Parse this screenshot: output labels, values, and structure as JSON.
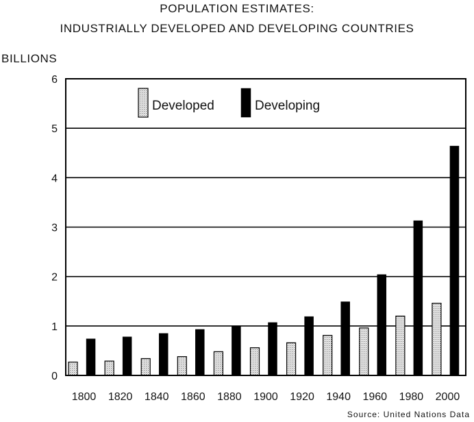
{
  "chart_data": {
    "type": "bar",
    "title": "POPULATION ESTIMATES:",
    "subtitle": "INDUSTRIALLY DEVELOPED AND DEVELOPING COUNTRIES",
    "ylabel": "BILLIONS",
    "xlabel": "",
    "source": "Source: United Nations Data",
    "categories": [
      "1800",
      "1820",
      "1840",
      "1860",
      "1880",
      "1900",
      "1920",
      "1940",
      "1960",
      "1980",
      "2000"
    ],
    "ylim": [
      0,
      6
    ],
    "yticks": [
      0,
      1,
      2,
      3,
      4,
      5,
      6
    ],
    "grid": true,
    "legend_position": "top-left",
    "series": [
      {
        "name": "Developed",
        "style": "dotted",
        "color": "#d9d9d9",
        "values": [
          0.27,
          0.29,
          0.34,
          0.38,
          0.48,
          0.56,
          0.66,
          0.81,
          0.96,
          1.2,
          1.46
        ]
      },
      {
        "name": "Developing",
        "style": "solid",
        "color": "#000000",
        "values": [
          0.74,
          0.78,
          0.85,
          0.93,
          0.99,
          1.07,
          1.19,
          1.49,
          2.04,
          3.13,
          4.64
        ]
      }
    ]
  }
}
